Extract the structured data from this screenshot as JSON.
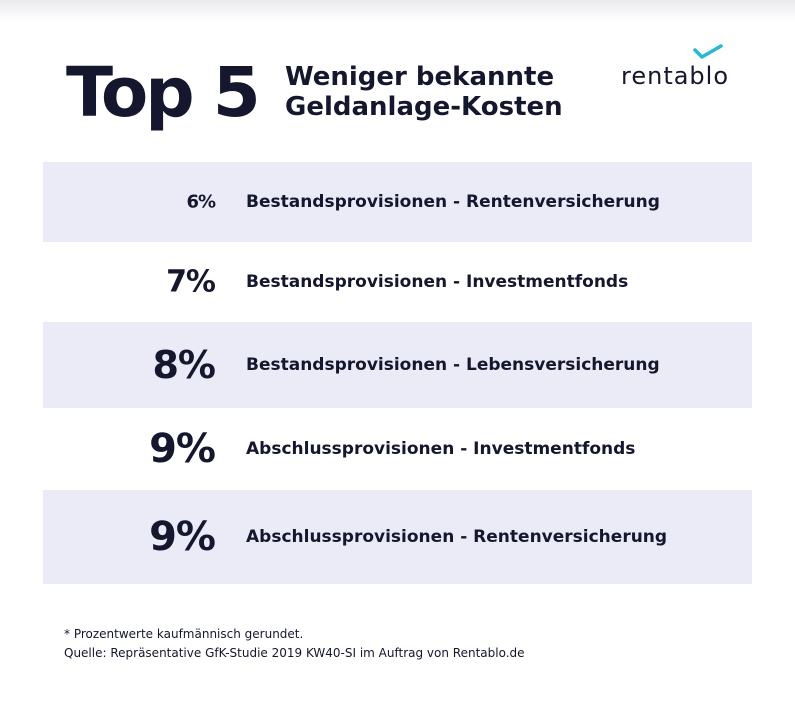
{
  "header": {
    "headline": "Top 5",
    "subtitle_line1": "Weniger bekannte",
    "subtitle_line2": "Geldanlage-Kosten"
  },
  "logo": {
    "text": "rentablo",
    "icon": "checkmark-icon",
    "accent_color": "#27b8d8"
  },
  "chart_data": {
    "type": "table",
    "unit": "%",
    "rows": [
      {
        "label": "Bestandsprovisionen - Rentenversicherung",
        "value": 6,
        "display": "6%"
      },
      {
        "label": "Bestandsprovisionen - Investmentfonds",
        "value": 7,
        "display": "7%"
      },
      {
        "label": "Bestandsprovisionen - Lebensversicherung",
        "value": 8,
        "display": "8%"
      },
      {
        "label": "Abschlussprovisionen - Investmentfonds",
        "value": 9,
        "display": "9%"
      },
      {
        "label": "Abschlussprovisionen - Rentenversicherung",
        "value": 9,
        "display": "9%"
      }
    ],
    "colors": {
      "stripe": "#ebebf7",
      "text": "#14172e"
    }
  },
  "footnote": {
    "line1": "* Prozentwerte kaufmännisch gerundet.",
    "line2": "Quelle: Repräsentative GfK-Studie 2019 KW40-SI im Auftrag von Rentablo.de"
  }
}
